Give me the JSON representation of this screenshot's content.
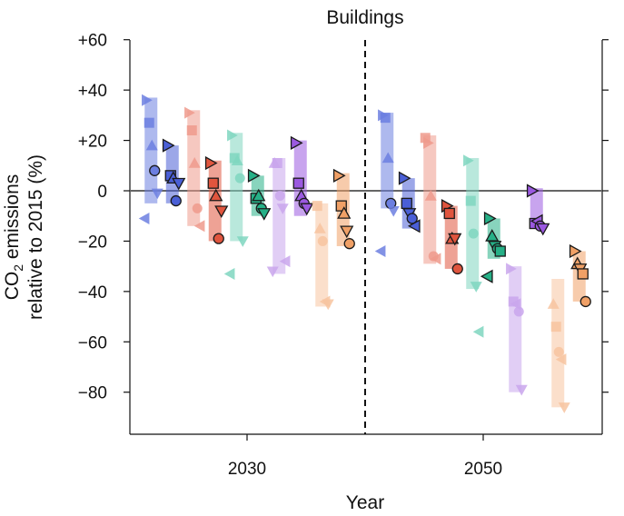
{
  "chart_data": {
    "type": "scatter",
    "title": "Buildings",
    "xlabel": "Year",
    "ylabel_line1": "CO",
    "ylabel_sub": "2",
    "ylabel_line1_rest": " emissions",
    "ylabel_line2": "relative to 2015 (%)",
    "ylim": [
      -95,
      62
    ],
    "y_ticks": [
      60,
      40,
      20,
      0,
      -20,
      -40,
      -60,
      -80
    ],
    "y_tick_labels": [
      "+60",
      "+40",
      "+20",
      "0",
      "−20",
      "−40",
      "−60",
      "−80"
    ],
    "x_ticks": [
      2030,
      2050
    ],
    "x_tick_labels": [
      "2030",
      "2050"
    ],
    "zero_line": true,
    "divider": "dashed vertical line between 2030 and 2050 panels",
    "series": [
      {
        "year": 2030,
        "color": "#6c7fe0",
        "range": [
          -5,
          37
        ],
        "points": [
          {
            "marker": "tri-right",
            "y": 36,
            "o": 0
          },
          {
            "marker": "square",
            "y": 27,
            "o": 0
          },
          {
            "marker": "tri-up",
            "y": 18,
            "o": 0
          },
          {
            "marker": "circle",
            "y": 8,
            "o": 1
          },
          {
            "marker": "tri-down",
            "y": -1,
            "o": 0
          },
          {
            "marker": "tri-left",
            "y": -11,
            "o": 0
          }
        ]
      },
      {
        "year": 2030,
        "color": "#4a5fd6",
        "range": [
          -5,
          18
        ],
        "points": [
          {
            "marker": "tri-right",
            "y": 18,
            "o": 1
          },
          {
            "marker": "square",
            "y": 6,
            "o": 1
          },
          {
            "marker": "tri-up",
            "y": 5,
            "o": 1
          },
          {
            "marker": "circle",
            "y": -4,
            "o": 1
          },
          {
            "marker": "tri-down",
            "y": 3,
            "o": 1
          }
        ]
      },
      {
        "year": 2030,
        "color": "#ee9a8c",
        "range": [
          -14,
          32
        ],
        "points": [
          {
            "marker": "tri-right",
            "y": 31,
            "o": 0
          },
          {
            "marker": "square",
            "y": 24,
            "o": 0
          },
          {
            "marker": "tri-up",
            "y": 11,
            "o": 0
          },
          {
            "marker": "circle",
            "y": -7,
            "o": 0
          },
          {
            "marker": "tri-left",
            "y": -14,
            "o": 0
          }
        ]
      },
      {
        "year": 2030,
        "color": "#e0553e",
        "range": [
          -20,
          12
        ],
        "points": [
          {
            "marker": "tri-right",
            "y": 11,
            "o": 1
          },
          {
            "marker": "square",
            "y": 3,
            "o": 1
          },
          {
            "marker": "tri-up",
            "y": -2,
            "o": 1
          },
          {
            "marker": "circle",
            "y": -19,
            "o": 1
          },
          {
            "marker": "tri-down",
            "y": -8,
            "o": 1
          }
        ]
      },
      {
        "year": 2030,
        "color": "#7fd6bf",
        "range": [
          -20,
          23
        ],
        "points": [
          {
            "marker": "tri-right",
            "y": 22,
            "o": 0
          },
          {
            "marker": "square",
            "y": 13,
            "o": 0
          },
          {
            "marker": "tri-up",
            "y": 12,
            "o": 0
          },
          {
            "marker": "circle",
            "y": 5,
            "o": 0
          },
          {
            "marker": "tri-down",
            "y": -20,
            "o": 0
          },
          {
            "marker": "tri-left",
            "y": -33,
            "o": 0
          }
        ]
      },
      {
        "year": 2030,
        "color": "#26b087",
        "range": [
          -10,
          6
        ],
        "points": [
          {
            "marker": "tri-right",
            "y": 6,
            "o": 1
          },
          {
            "marker": "square",
            "y": -3,
            "o": 1
          },
          {
            "marker": "tri-up",
            "y": -2,
            "o": 1
          },
          {
            "marker": "circle",
            "y": -7,
            "o": 1
          },
          {
            "marker": "tri-down",
            "y": -9,
            "o": 1
          }
        ]
      },
      {
        "year": 2030,
        "color": "#c9a6ec",
        "range": [
          -33,
          13
        ],
        "points": [
          {
            "marker": "tri-up",
            "y": 11,
            "o": 0
          },
          {
            "marker": "square",
            "y": 11,
            "o": 0
          },
          {
            "marker": "circle",
            "y": -2,
            "o": 0
          },
          {
            "marker": "tri-down",
            "y": -7,
            "o": 0
          },
          {
            "marker": "tri-left",
            "y": -28,
            "o": 0
          },
          {
            "marker": "tri-down",
            "y": -32,
            "o": 0
          }
        ]
      },
      {
        "year": 2030,
        "color": "#9b59e0",
        "range": [
          -10,
          20
        ],
        "points": [
          {
            "marker": "tri-right",
            "y": 19,
            "o": 1
          },
          {
            "marker": "square",
            "y": 3,
            "o": 1
          },
          {
            "marker": "tri-up",
            "y": -2,
            "o": 1
          },
          {
            "marker": "circle",
            "y": -5,
            "o": 1
          },
          {
            "marker": "tri-down",
            "y": -7,
            "o": 1
          }
        ]
      },
      {
        "year": 2030,
        "color": "#f7c4a0",
        "range": [
          -46,
          -5
        ],
        "points": [
          {
            "marker": "square",
            "y": -6,
            "o": 0
          },
          {
            "marker": "tri-up",
            "y": -15,
            "o": 0
          },
          {
            "marker": "circle",
            "y": -20,
            "o": 0
          },
          {
            "marker": "tri-left",
            "y": -44,
            "o": 0
          },
          {
            "marker": "tri-down",
            "y": -45,
            "o": 0
          }
        ]
      },
      {
        "year": 2030,
        "color": "#f0a066",
        "range": [
          -22,
          7
        ],
        "points": [
          {
            "marker": "tri-right",
            "y": 6,
            "o": 1
          },
          {
            "marker": "square",
            "y": -6,
            "o": 1
          },
          {
            "marker": "tri-up",
            "y": -9,
            "o": 1
          },
          {
            "marker": "tri-down",
            "y": -16,
            "o": 1
          },
          {
            "marker": "circle",
            "y": -21,
            "o": 1
          }
        ]
      },
      {
        "year": 2050,
        "color": "#6c7fe0",
        "range": [
          -7,
          31
        ],
        "points": [
          {
            "marker": "tri-right",
            "y": 30,
            "o": 0
          },
          {
            "marker": "square",
            "y": 29,
            "o": 0
          },
          {
            "marker": "tri-up",
            "y": 13,
            "o": 0
          },
          {
            "marker": "circle",
            "y": -5,
            "o": 1
          },
          {
            "marker": "tri-down",
            "y": -8,
            "o": 0
          },
          {
            "marker": "tri-left",
            "y": -24,
            "o": 0
          }
        ]
      },
      {
        "year": 2050,
        "color": "#4a5fd6",
        "range": [
          -15,
          5
        ],
        "points": [
          {
            "marker": "tri-right",
            "y": 5,
            "o": 1
          },
          {
            "marker": "square",
            "y": -5,
            "o": 1
          },
          {
            "marker": "tri-down",
            "y": -9,
            "o": 1
          },
          {
            "marker": "circle",
            "y": -11,
            "o": 1
          },
          {
            "marker": "tri-left",
            "y": -14,
            "o": 1
          }
        ]
      },
      {
        "year": 2050,
        "color": "#ee9a8c",
        "range": [
          -29,
          22
        ],
        "points": [
          {
            "marker": "square",
            "y": 21,
            "o": 0
          },
          {
            "marker": "tri-right",
            "y": 19,
            "o": 0
          },
          {
            "marker": "tri-up",
            "y": -2,
            "o": 0
          },
          {
            "marker": "circle",
            "y": -26,
            "o": 0
          },
          {
            "marker": "tri-left",
            "y": -27,
            "o": 0
          }
        ]
      },
      {
        "year": 2050,
        "color": "#e0553e",
        "range": [
          -31,
          -6
        ],
        "points": [
          {
            "marker": "tri-right",
            "y": -6,
            "o": 1
          },
          {
            "marker": "square",
            "y": -9,
            "o": 1
          },
          {
            "marker": "tri-up",
            "y": -19,
            "o": 1
          },
          {
            "marker": "tri-down",
            "y": -19,
            "o": 1
          },
          {
            "marker": "circle",
            "y": -31,
            "o": 1
          }
        ]
      },
      {
        "year": 2050,
        "color": "#7fd6bf",
        "range": [
          -39,
          13
        ],
        "points": [
          {
            "marker": "tri-right",
            "y": 12,
            "o": 0
          },
          {
            "marker": "square",
            "y": -4,
            "o": 0
          },
          {
            "marker": "circle",
            "y": -17,
            "o": 0
          },
          {
            "marker": "tri-down",
            "y": -38,
            "o": 0
          },
          {
            "marker": "tri-left",
            "y": -56,
            "o": 0
          }
        ]
      },
      {
        "year": 2050,
        "color": "#26b087",
        "range": [
          -27,
          -11
        ],
        "points": [
          {
            "marker": "tri-right",
            "y": -11,
            "o": 1
          },
          {
            "marker": "tri-up",
            "y": -18,
            "o": 1
          },
          {
            "marker": "tri-down",
            "y": -22,
            "o": 1
          },
          {
            "marker": "circle",
            "y": -23,
            "o": 1
          },
          {
            "marker": "square",
            "y": -24,
            "o": 1
          },
          {
            "marker": "tri-left",
            "y": -34,
            "o": 1
          }
        ]
      },
      {
        "year": 2050,
        "color": "#c9a6ec",
        "range": [
          -80,
          -30
        ],
        "points": [
          {
            "marker": "tri-right",
            "y": -31,
            "o": 0
          },
          {
            "marker": "square",
            "y": -44,
            "o": 0
          },
          {
            "marker": "tri-left",
            "y": -45,
            "o": 0
          },
          {
            "marker": "circle",
            "y": -48,
            "o": 0
          },
          {
            "marker": "tri-down",
            "y": -79,
            "o": 0
          }
        ]
      },
      {
        "year": 2050,
        "color": "#9b59e0",
        "range": [
          -15,
          1
        ],
        "points": [
          {
            "marker": "tri-right",
            "y": 0,
            "o": 1
          },
          {
            "marker": "square",
            "y": -13,
            "o": 1
          },
          {
            "marker": "tri-left",
            "y": -12,
            "o": 1
          },
          {
            "marker": "circle",
            "y": -14,
            "o": 1
          },
          {
            "marker": "tri-down",
            "y": -15,
            "o": 1
          }
        ]
      },
      {
        "year": 2050,
        "color": "#f7c4a0",
        "range": [
          -86,
          -35
        ],
        "points": [
          {
            "marker": "tri-up",
            "y": -45,
            "o": 0
          },
          {
            "marker": "square",
            "y": -54,
            "o": 0
          },
          {
            "marker": "circle",
            "y": -64,
            "o": 0
          },
          {
            "marker": "tri-left",
            "y": -67,
            "o": 0
          },
          {
            "marker": "tri-down",
            "y": -86,
            "o": 0
          }
        ]
      },
      {
        "year": 2050,
        "color": "#f0a066",
        "range": [
          -44,
          -24
        ],
        "points": [
          {
            "marker": "tri-right",
            "y": -24,
            "o": 1
          },
          {
            "marker": "tri-up",
            "y": -29,
            "o": 1
          },
          {
            "marker": "tri-down",
            "y": -31,
            "o": 1
          },
          {
            "marker": "square",
            "y": -33,
            "o": 1
          },
          {
            "marker": "circle",
            "y": -44,
            "o": 1
          }
        ]
      }
    ]
  }
}
